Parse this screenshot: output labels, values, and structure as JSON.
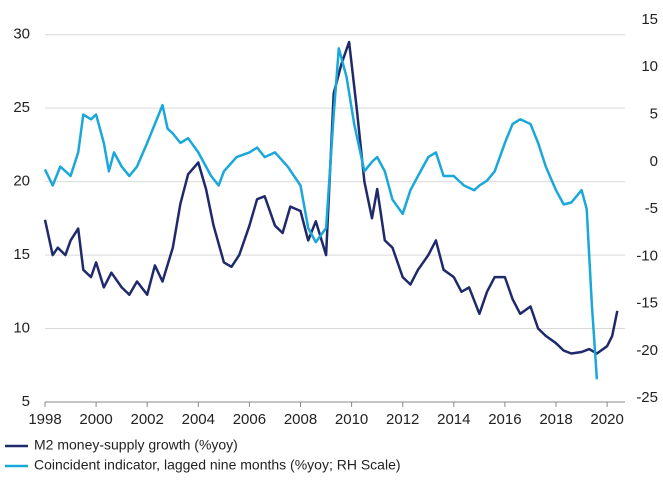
{
  "chart_data": {
    "type": "line",
    "xlim": [
      1998,
      2020.7
    ],
    "xticks": [
      1998,
      2000,
      2002,
      2004,
      2006,
      2008,
      2010,
      2012,
      2014,
      2016,
      2018,
      2020
    ],
    "ylim": [
      5,
      31
    ],
    "yticks": [
      5,
      10,
      15,
      20,
      25,
      30
    ],
    "y2lim": [
      -25.4,
      15
    ],
    "y2ticks": [
      -25,
      -20,
      -15,
      -10,
      -5,
      0,
      5,
      10,
      15
    ],
    "grid": true,
    "series": [
      {
        "name": "M2 money-supply growth (%yoy)",
        "color": "#1f2a6b",
        "x": [
          1998.0,
          1998.3,
          1998.5,
          1998.8,
          1999.0,
          1999.3,
          1999.5,
          1999.8,
          2000.0,
          2000.3,
          2000.6,
          2001.0,
          2001.3,
          2001.6,
          2002.0,
          2002.3,
          2002.6,
          2003.0,
          2003.3,
          2003.6,
          2004.0,
          2004.3,
          2004.6,
          2005.0,
          2005.3,
          2005.6,
          2006.0,
          2006.3,
          2006.6,
          2007.0,
          2007.3,
          2007.6,
          2008.0,
          2008.3,
          2008.6,
          2009.0,
          2009.3,
          2009.6,
          2009.9,
          2010.2,
          2010.5,
          2010.8,
          2011.0,
          2011.3,
          2011.6,
          2012.0,
          2012.3,
          2012.6,
          2013.0,
          2013.3,
          2013.6,
          2014.0,
          2014.3,
          2014.6,
          2015.0,
          2015.3,
          2015.6,
          2016.0,
          2016.3,
          2016.6,
          2017.0,
          2017.3,
          2017.6,
          2018.0,
          2018.3,
          2018.6,
          2019.0,
          2019.3,
          2019.6,
          2020.0,
          2020.2,
          2020.4
        ],
        "values": [
          17.4,
          15.0,
          15.5,
          15.0,
          16.0,
          16.8,
          14.0,
          13.5,
          14.5,
          12.8,
          13.8,
          12.8,
          12.3,
          13.2,
          12.3,
          14.3,
          13.2,
          15.5,
          18.5,
          20.5,
          21.3,
          19.5,
          17.0,
          14.5,
          14.2,
          15.0,
          17.0,
          18.8,
          19.0,
          17.0,
          16.5,
          18.3,
          18.0,
          16.0,
          17.3,
          15.0,
          26.0,
          28.0,
          29.5,
          25.0,
          20.0,
          17.5,
          19.5,
          16.0,
          15.5,
          13.5,
          13.0,
          14.0,
          15.0,
          16.0,
          14.0,
          13.5,
          12.5,
          12.8,
          11.0,
          12.5,
          13.5,
          13.5,
          12.0,
          11.0,
          11.5,
          10.0,
          9.5,
          9.0,
          8.5,
          8.3,
          8.4,
          8.6,
          8.3,
          8.8,
          9.5,
          11.2
        ]
      },
      {
        "name": "Coincident indicator, lagged nine months (%yoy; RH Scale)",
        "color": "#1aa7d9",
        "axis": "y2",
        "x": [
          1998.0,
          1998.3,
          1998.6,
          1999.0,
          1999.3,
          1999.5,
          1999.8,
          2000.0,
          2000.3,
          2000.5,
          2000.7,
          2001.0,
          2001.3,
          2001.6,
          2002.0,
          2002.3,
          2002.6,
          2002.8,
          2003.0,
          2003.3,
          2003.6,
          2004.0,
          2004.5,
          2004.8,
          2005.0,
          2005.5,
          2006.0,
          2006.3,
          2006.6,
          2007.0,
          2007.5,
          2008.0,
          2008.3,
          2008.6,
          2009.0,
          2009.3,
          2009.5,
          2009.8,
          2010.1,
          2010.5,
          2010.8,
          2011.0,
          2011.3,
          2011.6,
          2012.0,
          2012.3,
          2012.6,
          2013.0,
          2013.3,
          2013.6,
          2014.0,
          2014.4,
          2014.8,
          2015.0,
          2015.3,
          2015.6,
          2016.0,
          2016.3,
          2016.6,
          2017.0,
          2017.3,
          2017.6,
          2018.0,
          2018.3,
          2018.6,
          2019.0,
          2019.2,
          2019.4,
          2019.6
        ],
        "values": [
          -0.8,
          -2.5,
          -0.5,
          -1.5,
          1.0,
          5.0,
          4.5,
          5.0,
          2.0,
          -1.0,
          1.0,
          -0.5,
          -1.5,
          -0.5,
          2.0,
          4.0,
          6.0,
          3.5,
          3.0,
          2.0,
          2.5,
          1.0,
          -1.5,
          -2.5,
          -1.0,
          0.5,
          1.0,
          1.5,
          0.5,
          1.0,
          -0.5,
          -2.5,
          -7.0,
          -8.5,
          -7.0,
          5.0,
          12.0,
          9.0,
          4.0,
          -1.0,
          0.0,
          0.5,
          -1.0,
          -4.0,
          -5.5,
          -3.0,
          -1.5,
          0.5,
          1.0,
          -1.5,
          -1.5,
          -2.5,
          -3.0,
          -2.5,
          -2.0,
          -1.0,
          2.0,
          4.0,
          4.5,
          4.0,
          2.0,
          -0.5,
          -3.0,
          -4.5,
          -4.3,
          -3.0,
          -5.0,
          -15.0,
          -23.0
        ]
      }
    ]
  }
}
